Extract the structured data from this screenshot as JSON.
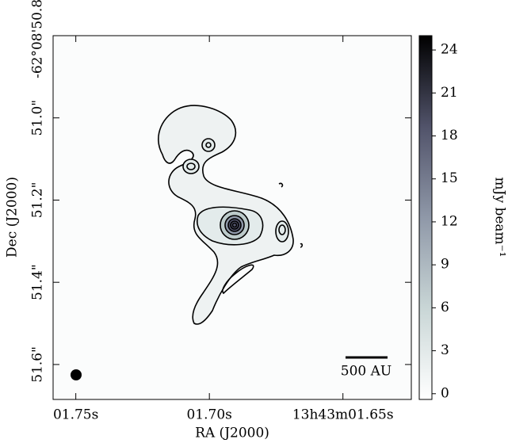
{
  "chart_data": {
    "type": "image",
    "xlabel": "RA (J2000)",
    "ylabel": "Dec (J2000)",
    "xlim": [
      1.7585,
      1.6244
    ],
    "xticks": [
      {
        "value": 1.75,
        "label": "01.75s"
      },
      {
        "value": 1.7,
        "label": "01.70s"
      },
      {
        "value": 1.65,
        "label": "13h43m01.65s"
      }
    ],
    "ylim": [
      51.685,
      50.8
    ],
    "yticks": [
      {
        "value": 50.8,
        "label": "-62°08'50.8\""
      },
      {
        "value": 51.0,
        "label": "51.0\""
      },
      {
        "value": 51.2,
        "label": "51.2\""
      },
      {
        "value": 51.4,
        "label": "51.4\""
      },
      {
        "value": 51.6,
        "label": "51.6\""
      }
    ],
    "colorbar": {
      "label": "mJy beam⁻¹",
      "lim": [
        -0.4,
        25
      ],
      "ticks": [
        0,
        3,
        6,
        9,
        12,
        15,
        18,
        21,
        24
      ]
    },
    "scalebar_label": "500 AU"
  }
}
